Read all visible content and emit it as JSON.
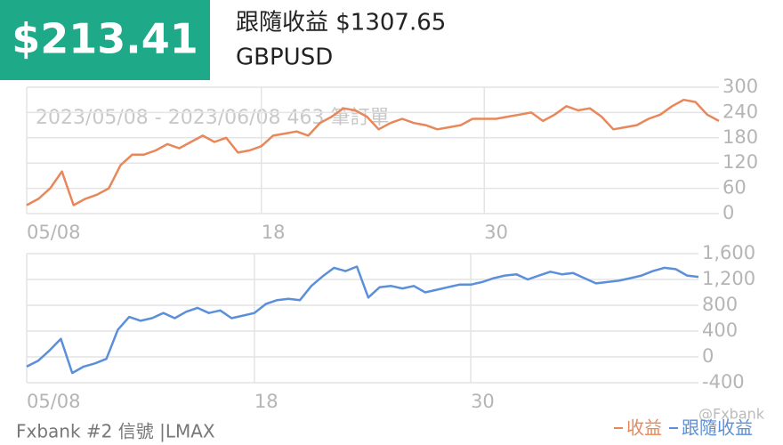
{
  "header": {
    "price": "$213.41",
    "follow": "跟隨收益 $1307.65",
    "symbol": "GBPUSD"
  },
  "chart_data": [
    {
      "type": "line",
      "subtitle": "2023/05/08 - 2023/06/08 463 筆訂單",
      "categories": [
        "05/08",
        null,
        null,
        null,
        null,
        null,
        null,
        null,
        null,
        null,
        null,
        null,
        null,
        null,
        null,
        null,
        null,
        null,
        null,
        null,
        "18",
        null,
        null,
        null,
        null,
        null,
        null,
        null,
        null,
        null,
        null,
        null,
        null,
        null,
        null,
        null,
        null,
        null,
        null,
        "30",
        null,
        null,
        null,
        null,
        null,
        null,
        null,
        null,
        null,
        null,
        null,
        null,
        null,
        null,
        null,
        null,
        null,
        null,
        null,
        null
      ],
      "series": [
        {
          "name": "收益",
          "color": "#e8875a",
          "values": [
            20,
            35,
            60,
            100,
            20,
            35,
            45,
            60,
            115,
            140,
            140,
            150,
            165,
            155,
            170,
            185,
            170,
            180,
            145,
            150,
            160,
            185,
            190,
            195,
            185,
            215,
            230,
            250,
            245,
            230,
            200,
            215,
            225,
            215,
            210,
            200,
            205,
            210,
            225,
            225,
            225,
            230,
            235,
            240,
            220,
            235,
            255,
            245,
            250,
            230,
            200,
            205,
            210,
            225,
            235,
            255,
            270,
            265,
            235,
            220
          ]
        }
      ],
      "ylim": [
        0,
        300
      ],
      "yticks": [
        0,
        60,
        120,
        180,
        240,
        300
      ],
      "grid": true
    },
    {
      "type": "line",
      "categories": [
        "05/08",
        null,
        null,
        null,
        null,
        null,
        null,
        null,
        null,
        null,
        null,
        null,
        null,
        null,
        null,
        null,
        null,
        null,
        null,
        null,
        "18",
        null,
        null,
        null,
        null,
        null,
        null,
        null,
        null,
        null,
        null,
        null,
        null,
        null,
        null,
        null,
        null,
        null,
        null,
        "30",
        null,
        null,
        null,
        null,
        null,
        null,
        null,
        null,
        null,
        null,
        null,
        null,
        null,
        null,
        null,
        null,
        null,
        null,
        null,
        null
      ],
      "series": [
        {
          "name": "跟隨收益",
          "color": "#5b8fd9",
          "values": [
            -150,
            -60,
            100,
            280,
            -250,
            -150,
            -100,
            -30,
            420,
            620,
            560,
            600,
            680,
            600,
            700,
            760,
            680,
            720,
            600,
            640,
            680,
            820,
            880,
            900,
            880,
            1100,
            1250,
            1380,
            1330,
            1400,
            920,
            1080,
            1100,
            1060,
            1100,
            1000,
            1040,
            1080,
            1120,
            1120,
            1160,
            1220,
            1260,
            1280,
            1200,
            1260,
            1320,
            1280,
            1300,
            1220,
            1140,
            1160,
            1180,
            1220,
            1260,
            1330,
            1380,
            1360,
            1260,
            1240
          ]
        }
      ],
      "ylim": [
        -400,
        1600
      ],
      "yticks": [
        -400,
        0,
        400,
        800,
        {
          "value": 1200,
          "label": "1,200"
        },
        {
          "value": 1600,
          "label": "1,600"
        }
      ],
      "grid": true
    }
  ],
  "footer": {
    "source": "Fxbank #2 信號 |LMAX",
    "watermark": "@Fxbank"
  }
}
